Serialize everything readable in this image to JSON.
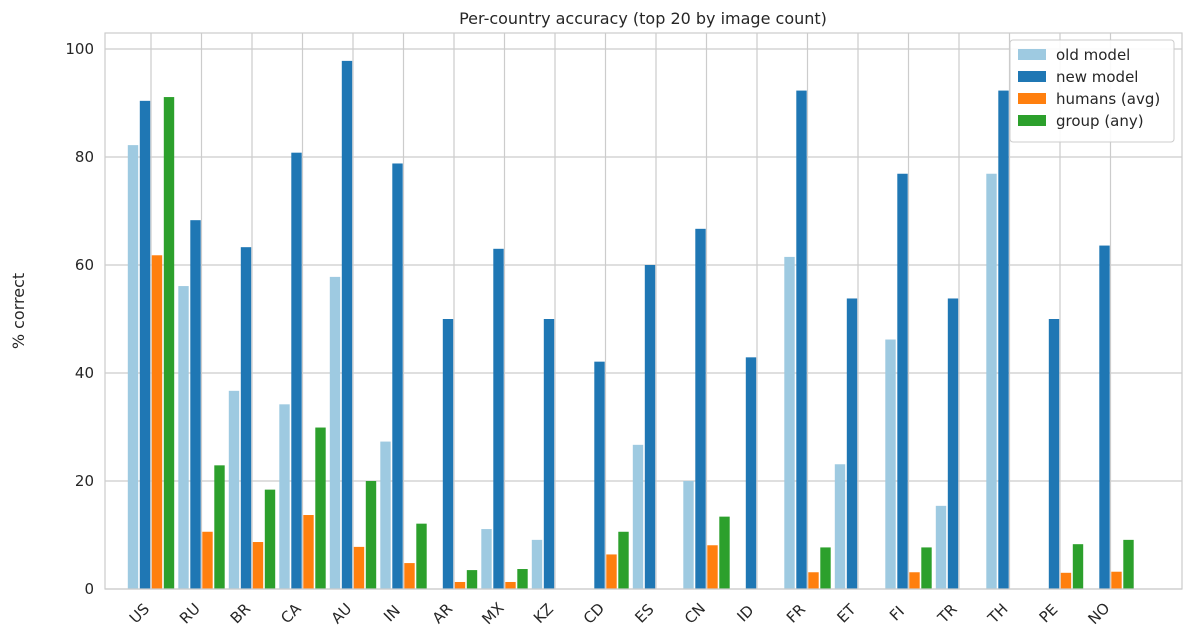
{
  "chart_data": {
    "type": "bar",
    "title": "Per-country accuracy (top 20 by image count)",
    "xlabel": "",
    "ylabel": "% correct",
    "ylim": [
      0,
      103
    ],
    "yticks": [
      0,
      20,
      40,
      60,
      80,
      100
    ],
    "grid": true,
    "legend_position": "top-right",
    "categories": [
      "US",
      "RU",
      "BR",
      "CA",
      "AU",
      "IN",
      "AR",
      "MX",
      "KZ",
      "CD",
      "ES",
      "CN",
      "ID",
      "FR",
      "ET",
      "FI",
      "TR",
      "TH",
      "PE",
      "NO"
    ],
    "series": [
      {
        "name": "old model",
        "color": "#9ecae1",
        "values": [
          82.2,
          56.1,
          36.7,
          34.2,
          57.8,
          27.3,
          0,
          11.1,
          9.1,
          0,
          26.7,
          20.0,
          0,
          61.5,
          23.1,
          46.2,
          15.4,
          76.9,
          0,
          0
        ]
      },
      {
        "name": "new model",
        "color": "#1f77b4",
        "values": [
          90.4,
          68.3,
          63.3,
          80.8,
          97.8,
          78.8,
          50.0,
          63.0,
          50.0,
          42.1,
          60.0,
          66.7,
          42.9,
          92.3,
          53.8,
          76.9,
          53.8,
          92.3,
          50.0,
          63.6
        ]
      },
      {
        "name": "humans (avg)",
        "color": "#ff7f0e",
        "values": [
          61.8,
          10.6,
          8.7,
          13.7,
          7.8,
          4.8,
          1.3,
          1.3,
          0,
          6.4,
          0,
          8.1,
          0,
          3.1,
          0,
          3.1,
          0,
          0,
          3.0,
          3.2
        ]
      },
      {
        "name": "group (any)",
        "color": "#2ca02c",
        "values": [
          91.1,
          22.9,
          18.4,
          29.9,
          20.0,
          12.1,
          3.5,
          3.7,
          0,
          10.6,
          0,
          13.4,
          0,
          7.7,
          0,
          7.7,
          0,
          0,
          8.3,
          9.1
        ]
      }
    ]
  }
}
